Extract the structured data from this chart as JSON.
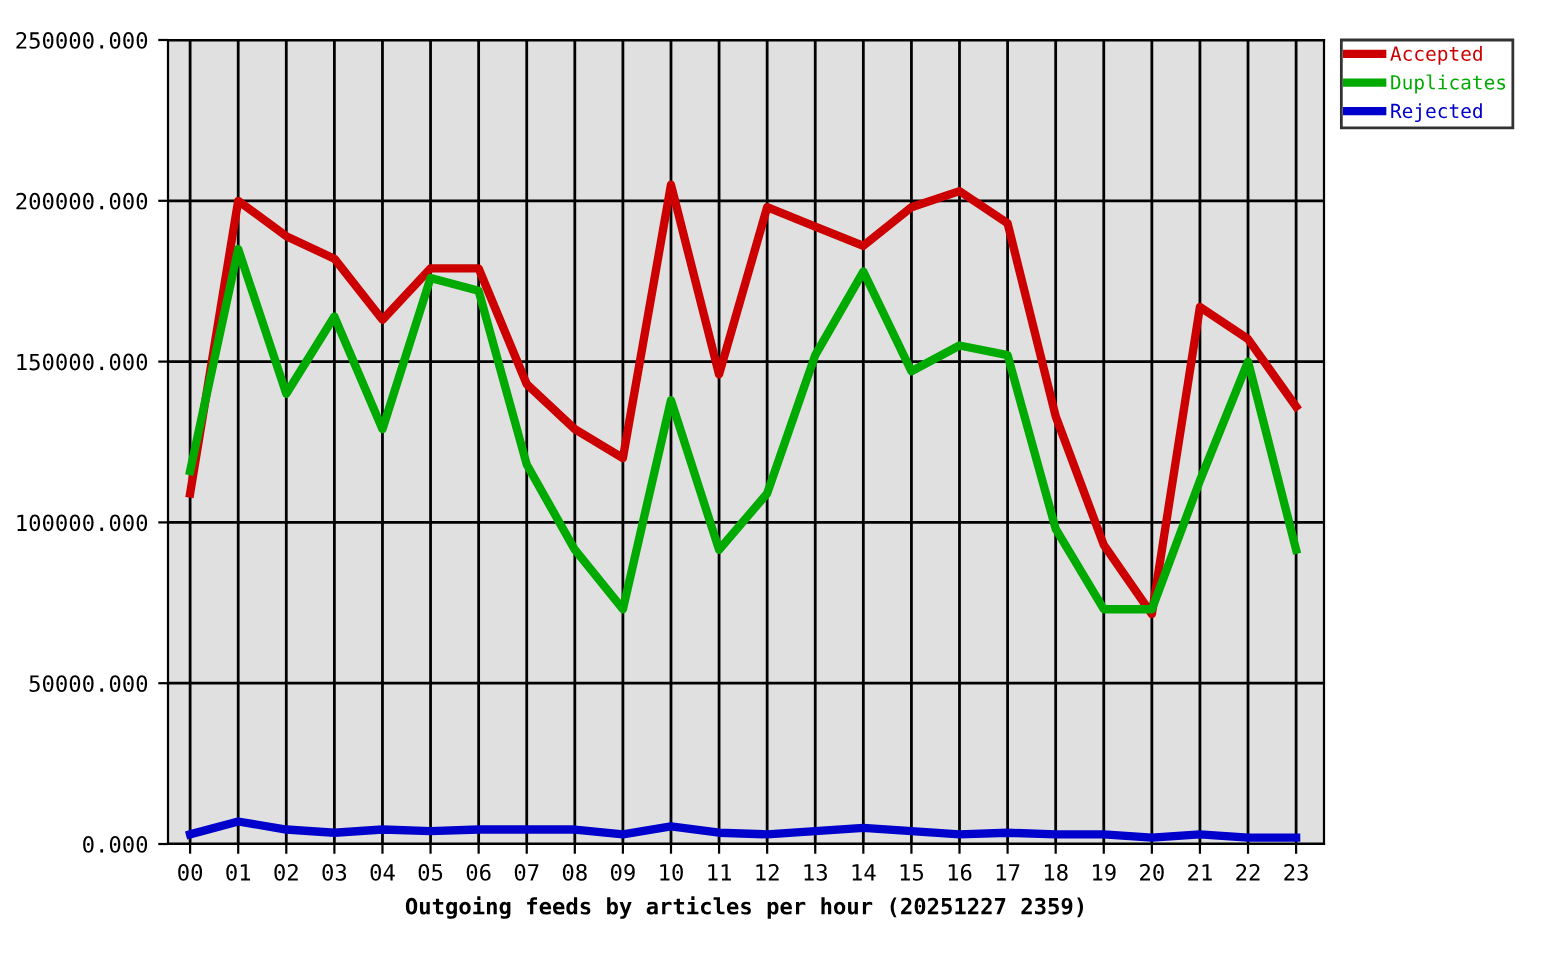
{
  "chart_data": {
    "type": "line",
    "xlabel": "Outgoing feeds by articles per hour (20251227 2359)",
    "categories": [
      "00",
      "01",
      "02",
      "03",
      "04",
      "05",
      "06",
      "07",
      "08",
      "09",
      "10",
      "11",
      "12",
      "13",
      "14",
      "15",
      "16",
      "17",
      "18",
      "19",
      "20",
      "21",
      "22",
      "23"
    ],
    "series": [
      {
        "name": "Accepted",
        "color": "#cc0000",
        "values": [
          109000,
          200000,
          189000,
          182000,
          163000,
          179000,
          179000,
          143000,
          129000,
          120000,
          205000,
          146000,
          198000,
          192000,
          186000,
          198000,
          203000,
          193000,
          133000,
          93000,
          71500,
          167000,
          157000,
          136000
        ]
      },
      {
        "name": "Duplicates",
        "color": "#00aa00",
        "values": [
          116000,
          185000,
          140000,
          164000,
          129000,
          176000,
          172000,
          118000,
          91500,
          73000,
          138000,
          91500,
          109000,
          152000,
          178000,
          147000,
          155000,
          152000,
          98000,
          73000,
          73000,
          113000,
          150000,
          91500
        ]
      },
      {
        "name": "Rejected",
        "color": "#0000cc",
        "values": [
          3000,
          7000,
          4500,
          3500,
          4500,
          4000,
          4500,
          4500,
          4500,
          3000,
          5500,
          3500,
          3000,
          4000,
          5000,
          4000,
          3000,
          3500,
          3000,
          3000,
          2000,
          3000,
          2000,
          2000
        ]
      }
    ],
    "ylim": [
      0,
      250000
    ],
    "yticks": [
      {
        "value": 0,
        "label": "0.000"
      },
      {
        "value": 50000,
        "label": "50000.000"
      },
      {
        "value": 100000,
        "label": "100000.000"
      },
      {
        "value": 150000,
        "label": "150000.000"
      },
      {
        "value": 200000,
        "label": "200000.000"
      },
      {
        "value": 250000,
        "label": "250000.000"
      }
    ],
    "grid": true,
    "legend": "top right",
    "line_style": "solid"
  }
}
